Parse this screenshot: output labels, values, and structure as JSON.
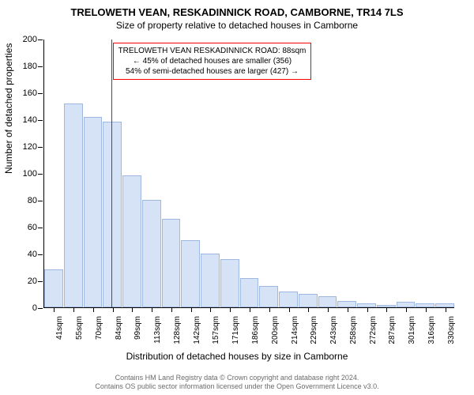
{
  "chart": {
    "type": "histogram",
    "title_main": "TRELOWETH VEAN, RESKADINNICK ROAD, CAMBORNE, TR14 7LS",
    "title_sub": "Size of property relative to detached houses in Camborne",
    "ylabel": "Number of detached properties",
    "xlabel": "Distribution of detached houses by size in Camborne",
    "ylim": [
      0,
      200
    ],
    "ytick_step": 20,
    "bar_color": "#d6e3f7",
    "bar_border_color": "#9fb8e0",
    "reference_line_color": "#ff0000",
    "reference_value_sqm": 88,
    "xticks": [
      "41sqm",
      "55sqm",
      "70sqm",
      "84sqm",
      "99sqm",
      "113sqm",
      "128sqm",
      "142sqm",
      "157sqm",
      "171sqm",
      "186sqm",
      "200sqm",
      "214sqm",
      "229sqm",
      "243sqm",
      "258sqm",
      "272sqm",
      "287sqm",
      "301sqm",
      "316sqm",
      "330sqm"
    ],
    "values": [
      28,
      152,
      142,
      138,
      98,
      80,
      66,
      50,
      40,
      36,
      22,
      16,
      12,
      10,
      8,
      5,
      3,
      2,
      4,
      3,
      3
    ],
    "annotation": {
      "line1": "TRELOWETH VEAN RESKADINNICK ROAD: 88sqm",
      "line2": "← 45% of detached houses are smaller (356)",
      "line3": "54% of semi-detached houses are larger (427) →"
    },
    "attribution": {
      "line1": "Contains HM Land Registry data © Crown copyright and database right 2024.",
      "line2": "Contains OS public sector information licensed under the Open Government Licence v3.0."
    },
    "title_fontsize": 13,
    "sub_fontsize": 12,
    "label_fontsize": 12,
    "tick_fontsize": 11,
    "annotation_fontsize": 10,
    "attribution_color": "#6b6b6b",
    "background_color": "#ffffff"
  }
}
